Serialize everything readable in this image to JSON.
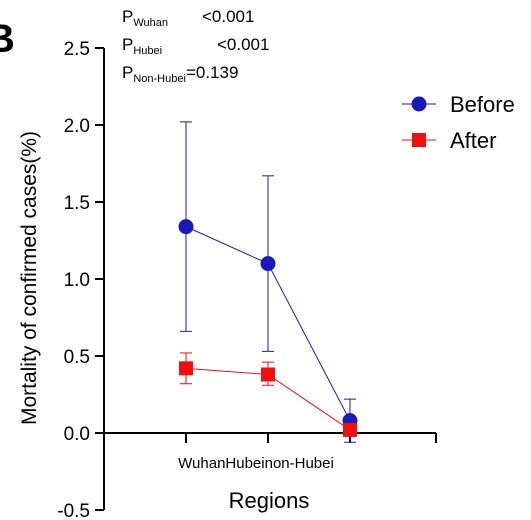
{
  "panel_label": "B",
  "annotations": [
    {
      "prefix": "P",
      "sub": "Wuhan",
      "rest": "<0.001"
    },
    {
      "prefix": "P",
      "sub": "Hubei",
      "rest": "<0.001"
    },
    {
      "prefix": "P",
      "sub": "Non-Hubei",
      "rest": "=0.139"
    }
  ],
  "chart_data": {
    "type": "line",
    "xlabel": "Regions",
    "ylabel": "Mortality of confirmed cases(%)",
    "x_tick_text": "WuhanHubeinon-Hubei",
    "categories": [
      "Wuhan",
      "Hubei",
      "non-Hubei"
    ],
    "ylim": [
      -0.5,
      2.5
    ],
    "yticks": [
      "-0.5",
      "0.0",
      "0.5",
      "1.0",
      "1.5",
      "2.0",
      "2.5"
    ],
    "legend_position": "top-right",
    "series": [
      {
        "name": "Before",
        "color": "#1a1ab8",
        "marker": "circle",
        "values": [
          1.34,
          1.1,
          0.08
        ],
        "err_low": [
          0.66,
          0.53,
          -0.06
        ],
        "err_high": [
          2.02,
          1.67,
          0.22
        ]
      },
      {
        "name": "After",
        "color": "#ee1111",
        "marker": "square",
        "values": [
          0.42,
          0.38,
          0.02
        ],
        "err_low": [
          0.32,
          0.31,
          0.0
        ],
        "err_high": [
          0.52,
          0.46,
          0.04
        ]
      }
    ]
  }
}
